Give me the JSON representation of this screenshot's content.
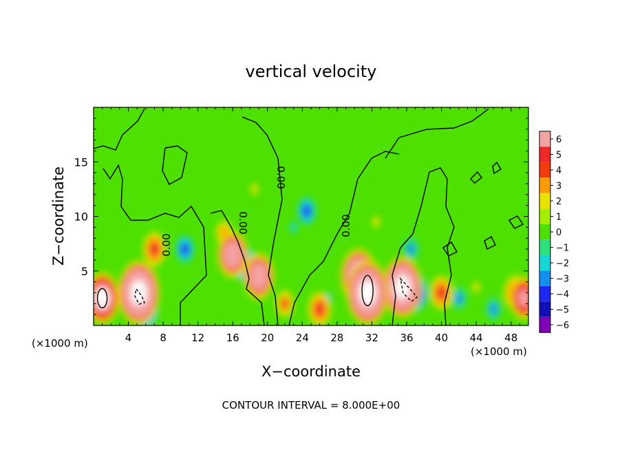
{
  "chart_data": {
    "type": "heatmap",
    "title": "vertical velocity",
    "xlabel": "X−coordinate",
    "ylabel": "Z−coordinate",
    "x_unit": "(×1000 m)",
    "xlim": [
      0,
      50
    ],
    "ylim": [
      0,
      20
    ],
    "x_ticks": [
      4,
      8,
      12,
      16,
      20,
      24,
      28,
      32,
      36,
      40,
      44,
      48
    ],
    "y_ticks": [
      5,
      10,
      15
    ],
    "footer": "CONTOUR INTERVAL = 8.000E+00",
    "contour_labels": [
      "0.00",
      "0.00",
      "0.00",
      "0.00"
    ],
    "colorbar": {
      "levels": [
        "6",
        "5",
        "4",
        "3",
        "2",
        "1",
        "0",
        "−1",
        "−2",
        "−3",
        "−4",
        "−5",
        "−6"
      ],
      "colors": [
        "#f4a3a3",
        "#f02828",
        "#f23c10",
        "#ff9a00",
        "#e8e400",
        "#a6ee00",
        "#4ee000",
        "#2de07a",
        "#14d8d8",
        "#1290ee",
        "#1e28f0",
        "#1010b8",
        "#8000b8"
      ]
    },
    "features": [
      {
        "x": 1.0,
        "z": 2.5,
        "w": 9
      },
      {
        "x": 5.2,
        "z": 3.0,
        "w": 12
      },
      {
        "x": 6.0,
        "z": 1.5,
        "w": -6
      },
      {
        "x": 7.0,
        "z": 7.0,
        "w": 5
      },
      {
        "x": 10.5,
        "z": 7.0,
        "w": -4
      },
      {
        "x": 15.0,
        "z": 8.5,
        "w": 3
      },
      {
        "x": 16.0,
        "z": 6.5,
        "w": 8
      },
      {
        "x": 17.5,
        "z": 5.5,
        "w": -5
      },
      {
        "x": 19.0,
        "z": 4.5,
        "w": 8
      },
      {
        "x": 18.5,
        "z": 12.5,
        "w": 2
      },
      {
        "x": 22.0,
        "z": 2.0,
        "w": 4
      },
      {
        "x": 23.0,
        "z": 9.0,
        "w": -2
      },
      {
        "x": 24.5,
        "z": 10.5,
        "w": -4
      },
      {
        "x": 26.0,
        "z": 1.5,
        "w": 5
      },
      {
        "x": 27.0,
        "z": 2.5,
        "w": -2
      },
      {
        "x": 30.5,
        "z": 4.5,
        "w": 10
      },
      {
        "x": 31.5,
        "z": 3.0,
        "w": 12
      },
      {
        "x": 32.5,
        "z": 9.5,
        "w": 2
      },
      {
        "x": 35.5,
        "z": 3.5,
        "w": 11
      },
      {
        "x": 37.0,
        "z": 3.0,
        "w": -6
      },
      {
        "x": 36.5,
        "z": 7.0,
        "w": -3
      },
      {
        "x": 40.0,
        "z": 3.0,
        "w": 5
      },
      {
        "x": 42.0,
        "z": 2.5,
        "w": -3
      },
      {
        "x": 44.0,
        "z": 3.5,
        "w": 2
      },
      {
        "x": 46.0,
        "z": 1.5,
        "w": -3
      },
      {
        "x": 48.5,
        "z": 3.0,
        "w": 5
      },
      {
        "x": 49.5,
        "z": 2.5,
        "w": 7
      }
    ]
  }
}
